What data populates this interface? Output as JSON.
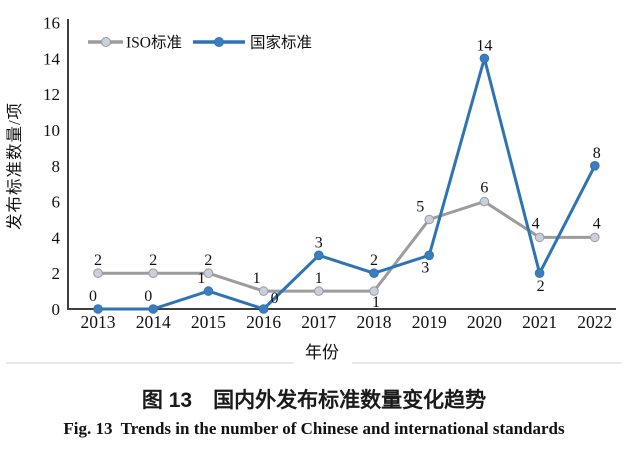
{
  "figure": {
    "caption_zh": "图 13　国内外发布标准数量变化趋势",
    "caption_en": "Fig. 13  Trends in the number of Chinese and international standards"
  },
  "chart_data": {
    "type": "line",
    "title": "",
    "xlabel": "年份",
    "ylabel": "发布标准数量/项",
    "categories": [
      "2013",
      "2014",
      "2015",
      "2016",
      "2017",
      "2018",
      "2019",
      "2020",
      "2021",
      "2022"
    ],
    "ylim": [
      0,
      16
    ],
    "ytick_step": 2,
    "grid": false,
    "legend_position": "top-left",
    "axis_color": "#3f3f3f",
    "text_color": "#111111",
    "divider_color": "#e2e2e2",
    "series": [
      {
        "name": "ISO标准",
        "color": "#9C9C9C",
        "marker_fill": "#C7D0DC",
        "values": [
          2,
          2,
          2,
          1,
          1,
          1,
          5,
          6,
          4,
          4
        ],
        "label_offsets": [
          [
            0,
            -8
          ],
          [
            0,
            -8
          ],
          [
            0,
            -8
          ],
          [
            -7,
            -8
          ],
          [
            0,
            -8
          ],
          [
            2,
            16
          ],
          [
            -9,
            -8
          ],
          [
            0,
            -9
          ],
          [
            -4,
            -9
          ],
          [
            2,
            -9
          ]
        ]
      },
      {
        "name": "国家标准",
        "color": "#2E74B5",
        "marker_fill": "#3E7DBD",
        "values": [
          0,
          0,
          1,
          0,
          3,
          2,
          3,
          14,
          2,
          8
        ],
        "label_offsets": [
          [
            -5,
            -8
          ],
          [
            -5,
            -8
          ],
          [
            -7,
            -8
          ],
          [
            11,
            -6
          ],
          [
            0,
            -8
          ],
          [
            0,
            -8
          ],
          [
            -4,
            17
          ],
          [
            0,
            -8
          ],
          [
            1,
            18
          ],
          [
            2,
            -8
          ]
        ]
      }
    ]
  }
}
